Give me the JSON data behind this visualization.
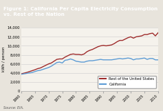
{
  "title": "Figure 1: California Per Capita Electricity Consumption\nvs. Rest of the Nation",
  "ylabel": "kWh / person",
  "source": "Source: EIA.",
  "xlim": [
    1960,
    2010
  ],
  "ylim": [
    0,
    14000
  ],
  "yticks": [
    0,
    2000,
    4000,
    6000,
    8000,
    10000,
    12000,
    14000
  ],
  "xticks": [
    1960,
    1965,
    1970,
    1975,
    1980,
    1985,
    1990,
    1995,
    2000,
    2005,
    2010
  ],
  "background_color": "#e8e4dc",
  "plot_bg_color": "#f5f2ec",
  "title_bg_color": "#1a1a1a",
  "title_text_color": "#ffffff",
  "us_color": "#9e2a2a",
  "ca_color": "#5b9bd5",
  "us_label": "Rest of the United States",
  "ca_label": "California",
  "years": [
    1960,
    1961,
    1962,
    1963,
    1964,
    1965,
    1966,
    1967,
    1968,
    1969,
    1970,
    1971,
    1972,
    1973,
    1974,
    1975,
    1976,
    1977,
    1978,
    1979,
    1980,
    1981,
    1982,
    1983,
    1984,
    1985,
    1986,
    1987,
    1988,
    1989,
    1990,
    1991,
    1992,
    1993,
    1994,
    1995,
    1996,
    1997,
    1998,
    1999,
    2000,
    2001,
    2002,
    2003,
    2004,
    2005,
    2006,
    2007,
    2008,
    2009,
    2010
  ],
  "us_kwh": [
    3800,
    3950,
    4100,
    4300,
    4500,
    4700,
    4950,
    5100,
    5400,
    5700,
    6000,
    6200,
    6600,
    7000,
    7100,
    7100,
    7500,
    7800,
    8100,
    8200,
    8100,
    8100,
    8000,
    8200,
    8700,
    9000,
    9200,
    9500,
    9800,
    10000,
    10100,
    10000,
    10100,
    10200,
    10500,
    10900,
    11200,
    11200,
    11500,
    11800,
    12000,
    11700,
    12000,
    12100,
    12200,
    12500,
    12500,
    12700,
    12800,
    12200,
    12900
  ],
  "ca_kwh": [
    3700,
    3800,
    3900,
    4000,
    4100,
    4300,
    4500,
    4600,
    4800,
    5000,
    5200,
    5500,
    5900,
    6300,
    6400,
    6200,
    6800,
    6900,
    7100,
    6900,
    6600,
    6500,
    6400,
    6400,
    6600,
    6700,
    6700,
    6800,
    6900,
    7000,
    6900,
    6900,
    6900,
    6900,
    7000,
    7100,
    7200,
    7100,
    7200,
    7300,
    7200,
    6900,
    7100,
    7100,
    7200,
    7300,
    7000,
    7200,
    7200,
    6900,
    6900
  ]
}
